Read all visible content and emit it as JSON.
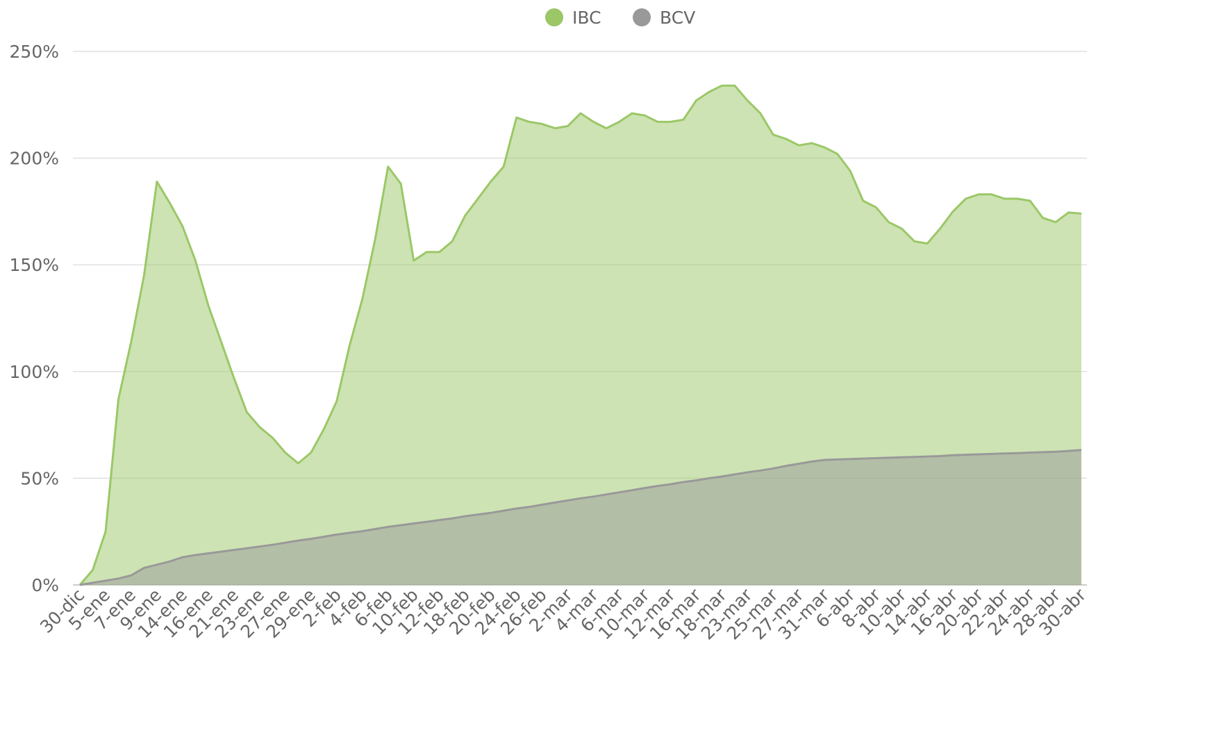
{
  "chart_data": {
    "type": "area",
    "categories": [
      "30-dic",
      null,
      "5-ene",
      null,
      "7-ene",
      null,
      "9-ene",
      null,
      "14-ene",
      null,
      "16-ene",
      null,
      "21-ene",
      null,
      "23-ene",
      null,
      "27-ene",
      null,
      "29-ene",
      null,
      "2-feb",
      null,
      "4-feb",
      null,
      "6-feb",
      null,
      "10-feb",
      null,
      "12-feb",
      null,
      "18-feb",
      null,
      "20-feb",
      null,
      "24-feb",
      null,
      "26-feb",
      null,
      "2-mar",
      null,
      "4-mar",
      null,
      "6-mar",
      null,
      "10-mar",
      null,
      "12-mar",
      null,
      "16-mar",
      null,
      "18-mar",
      null,
      "23-mar",
      null,
      "25-mar",
      null,
      "27-mar",
      null,
      "31-mar",
      null,
      "6-abr",
      null,
      "8-abr",
      null,
      "10-abr",
      null,
      "14-abr",
      null,
      "16-abr",
      null,
      "20-abr",
      null,
      "22-abr",
      null,
      "24-abr",
      null,
      "28-abr",
      null,
      "30-abr"
    ],
    "series": [
      {
        "name": "IBC",
        "color": "#9bc767",
        "values": [
          0,
          7,
          25,
          87,
          114,
          145,
          189,
          179,
          168,
          152,
          131,
          114,
          97,
          81,
          74,
          69,
          62,
          57,
          62,
          73,
          86,
          112,
          134,
          162,
          196,
          188,
          152,
          156,
          156,
          161,
          173,
          181,
          189,
          196,
          219,
          217,
          216,
          214,
          215,
          221,
          217,
          214,
          217,
          221,
          220,
          217,
          217,
          218,
          227,
          231,
          234,
          234,
          227,
          221,
          211,
          209,
          206,
          207,
          205,
          202,
          194,
          180,
          177,
          170,
          167,
          161,
          160,
          167,
          175,
          181,
          183,
          183,
          181,
          181,
          180,
          172,
          170,
          174.5,
          174
        ]
      },
      {
        "name": "BCV",
        "color": "#999999",
        "values": [
          0,
          1,
          2,
          3,
          4.5,
          8,
          9.5,
          11,
          13,
          14,
          14.8,
          15.6,
          16.4,
          17.2,
          18,
          18.8,
          19.8,
          20.8,
          21.6,
          22.6,
          23.6,
          24.4,
          25.2,
          26.2,
          27.2,
          28,
          28.8,
          29.6,
          30.4,
          31.2,
          32.2,
          33,
          33.8,
          34.8,
          35.8,
          36.6,
          37.6,
          38.6,
          39.6,
          40.6,
          41.4,
          42.4,
          43.4,
          44.4,
          45.4,
          46.4,
          47.2,
          48.2,
          49,
          50,
          50.8,
          51.8,
          52.8,
          53.6,
          54.6,
          55.8,
          56.8,
          57.8,
          58.6,
          58.8,
          59,
          59.2,
          59.4,
          59.6,
          59.8,
          60,
          60.2,
          60.4,
          60.8,
          61,
          61.2,
          61.4,
          61.6,
          61.8,
          62,
          62.2,
          62.4,
          62.8,
          63.2
        ]
      }
    ],
    "ylim": [
      0,
      250
    ],
    "yticks": [
      {
        "value": 0,
        "label": "0%"
      },
      {
        "value": 50,
        "label": "50%"
      },
      {
        "value": 100,
        "label": "100%"
      },
      {
        "value": 150,
        "label": "150%"
      },
      {
        "value": 200,
        "label": "200%"
      },
      {
        "value": 250,
        "label": "250%"
      }
    ],
    "grid": true,
    "legend": "top"
  }
}
